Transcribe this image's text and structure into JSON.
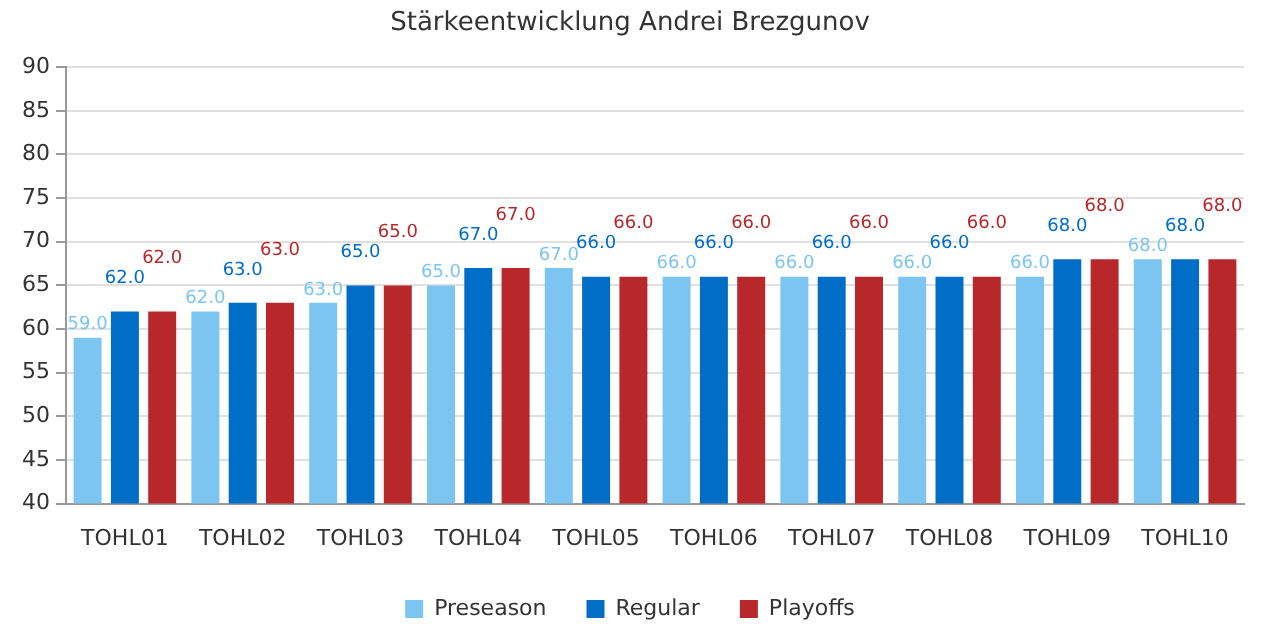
{
  "chart_data": {
    "type": "bar",
    "title": "Stärkeentwicklung Andrei Brezgunov",
    "categories": [
      "TOHL01",
      "TOHL02",
      "TOHL03",
      "TOHL04",
      "TOHL05",
      "TOHL06",
      "TOHL07",
      "TOHL08",
      "TOHL09",
      "TOHL10"
    ],
    "series": [
      {
        "name": "Preseason",
        "color": "#7cc5f0",
        "values": [
          59,
          62,
          63,
          65,
          67,
          66,
          66,
          66,
          66,
          68
        ],
        "value_labels": [
          "59.0",
          "62.0",
          "63.0",
          "65.0",
          "67.0",
          "66.0",
          "66.0",
          "66.0",
          "66.0",
          "68.0"
        ]
      },
      {
        "name": "Regular",
        "color": "#006dc6",
        "values": [
          62,
          63,
          65,
          67,
          66,
          66,
          66,
          66,
          68,
          68
        ],
        "value_labels": [
          "62.0",
          "63.0",
          "65.0",
          "67.0",
          "66.0",
          "66.0",
          "66.0",
          "66.0",
          "68.0",
          "68.0"
        ]
      },
      {
        "name": "Playoffs",
        "color": "#b8282b",
        "values": [
          62,
          63,
          65,
          67,
          66,
          66,
          66,
          66,
          68,
          68
        ],
        "value_labels": [
          "62.0",
          "63.0",
          "65.0",
          "67.0",
          "66.0",
          "66.0",
          "66.0",
          "66.0",
          "68.0",
          "68.0"
        ]
      }
    ],
    "ylim": [
      40,
      90
    ],
    "yticks": [
      40,
      45,
      50,
      55,
      60,
      65,
      70,
      75,
      80,
      85,
      90
    ],
    "grid": "y",
    "legend": "bottom"
  }
}
